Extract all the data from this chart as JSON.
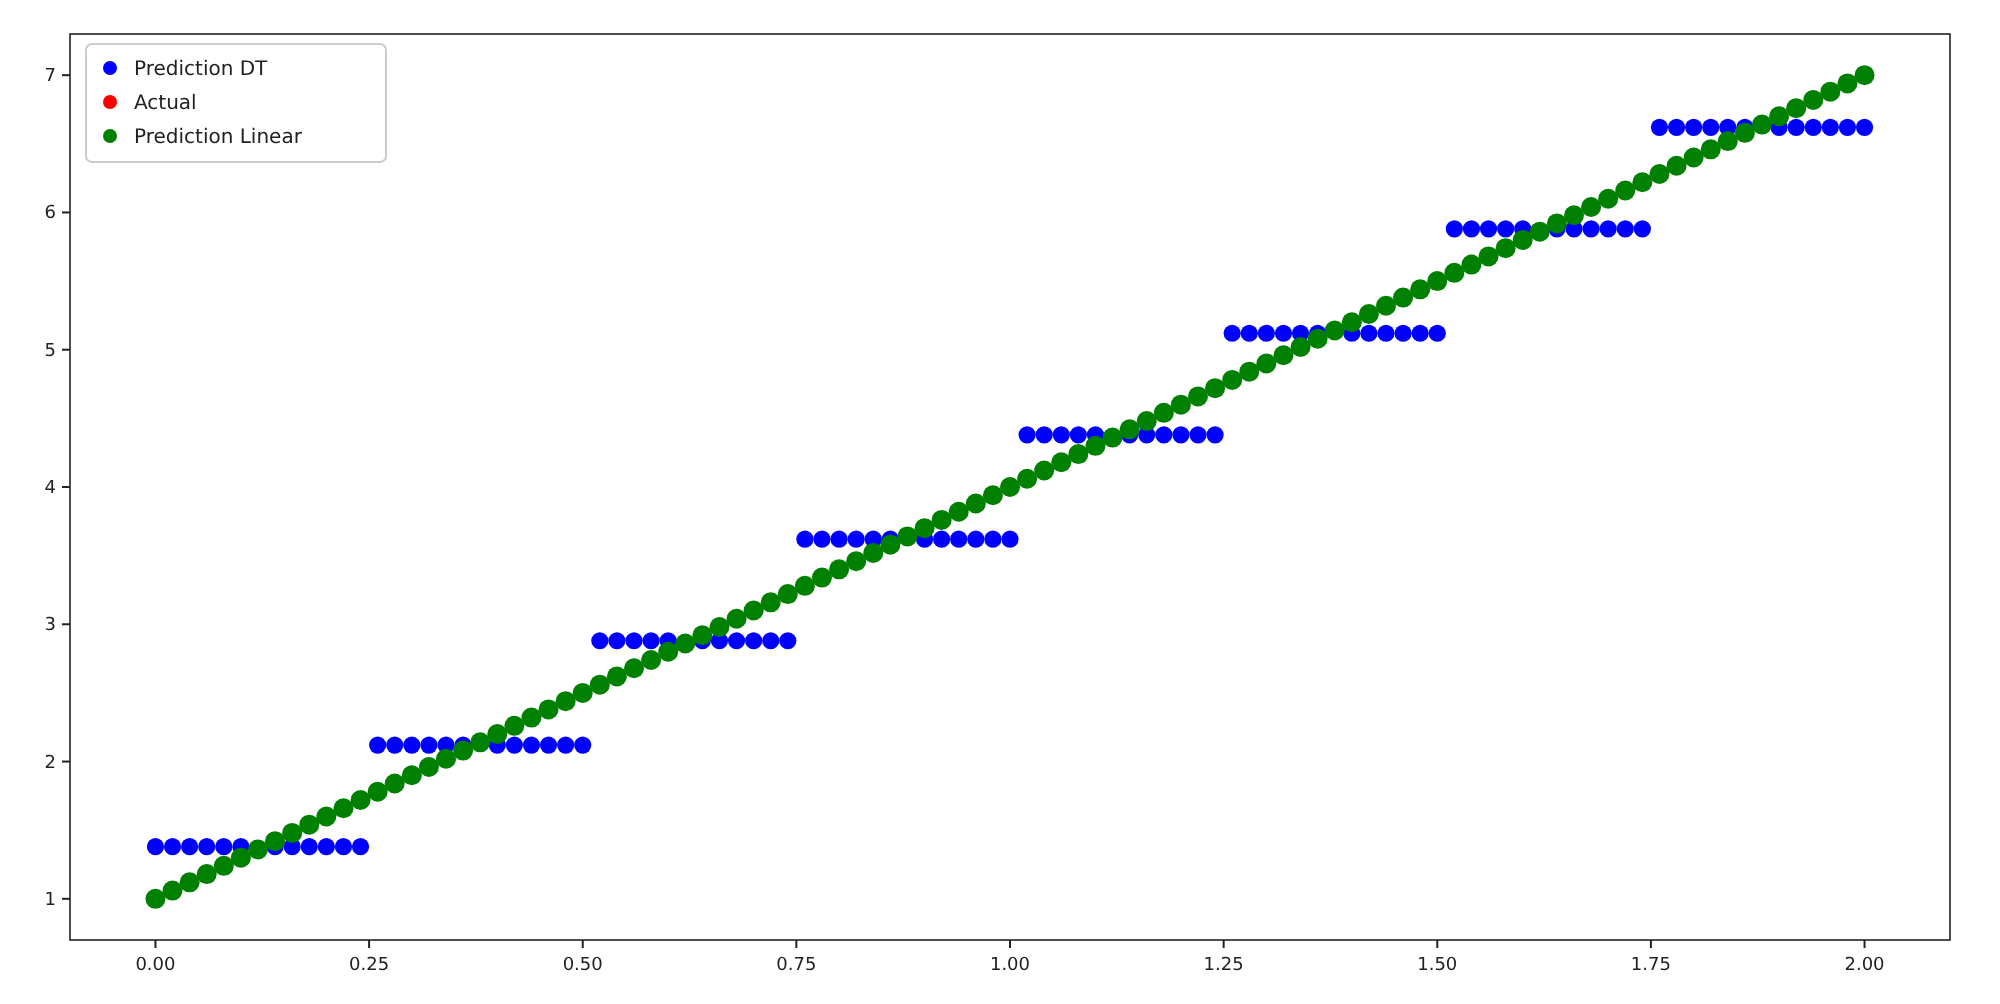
{
  "chart_data": {
    "type": "scatter",
    "xlim": [
      -0.1,
      2.1
    ],
    "ylim": [
      0.7,
      7.3
    ],
    "xticks": [
      {
        "value": 0,
        "label": "0.00"
      },
      {
        "value": 0.25,
        "label": "0.25"
      },
      {
        "value": 0.5,
        "label": "0.50"
      },
      {
        "value": 0.75,
        "label": "0.75"
      },
      {
        "value": 1,
        "label": "1.00"
      },
      {
        "value": 1.25,
        "label": "1.25"
      },
      {
        "value": 1.5,
        "label": "1.50"
      },
      {
        "value": 1.75,
        "label": "1.75"
      },
      {
        "value": 2,
        "label": "2.00"
      }
    ],
    "yticks": [
      1,
      2,
      3,
      4,
      5,
      6,
      7
    ],
    "legend": "top left",
    "marker": "circle",
    "grid": false,
    "x": [
      0,
      0.02,
      0.04,
      0.06,
      0.08,
      0.1,
      0.12,
      0.14,
      0.16,
      0.18,
      0.2,
      0.22,
      0.24,
      0.26,
      0.28,
      0.3,
      0.32,
      0.34,
      0.36,
      0.38,
      0.4,
      0.42,
      0.44,
      0.46,
      0.48,
      0.5,
      0.52,
      0.54,
      0.56,
      0.58,
      0.6,
      0.62,
      0.64,
      0.66,
      0.68,
      0.7,
      0.72,
      0.74,
      0.76,
      0.78,
      0.8,
      0.82,
      0.84,
      0.86,
      0.88,
      0.9,
      0.92,
      0.94,
      0.96,
      0.98,
      1,
      1.02,
      1.04,
      1.06,
      1.08,
      1.1,
      1.12,
      1.14,
      1.16,
      1.18,
      1.2,
      1.22,
      1.24,
      1.26,
      1.28,
      1.3,
      1.32,
      1.34,
      1.36,
      1.38,
      1.4,
      1.42,
      1.44,
      1.46,
      1.48,
      1.5,
      1.52,
      1.54,
      1.56,
      1.58,
      1.6,
      1.62,
      1.64,
      1.66,
      1.68,
      1.7,
      1.72,
      1.74,
      1.76,
      1.78,
      1.8,
      1.82,
      1.84,
      1.86,
      1.88,
      1.9,
      1.92,
      1.94,
      1.96,
      1.98,
      2
    ],
    "series": [
      {
        "name": "Prediction DT",
        "color": "#0000ff",
        "values": [
          1.38,
          1.38,
          1.38,
          1.38,
          1.38,
          1.38,
          null,
          1.38,
          1.38,
          1.38,
          1.38,
          1.38,
          1.38,
          2.12,
          2.12,
          2.12,
          2.12,
          2.12,
          2.12,
          null,
          2.12,
          2.12,
          2.12,
          2.12,
          2.12,
          2.12,
          2.88,
          2.88,
          2.88,
          2.88,
          2.88,
          null,
          2.88,
          2.88,
          2.88,
          2.88,
          2.88,
          2.88,
          3.62,
          3.62,
          3.62,
          3.62,
          3.62,
          3.62,
          null,
          3.62,
          3.62,
          3.62,
          3.62,
          3.62,
          3.62,
          4.38,
          4.38,
          4.38,
          4.38,
          4.38,
          null,
          4.38,
          4.38,
          4.38,
          4.38,
          4.38,
          4.38,
          5.12,
          5.12,
          5.12,
          5.12,
          5.12,
          5.12,
          null,
          5.12,
          5.12,
          5.12,
          5.12,
          5.12,
          5.12,
          5.88,
          5.88,
          5.88,
          5.88,
          5.88,
          null,
          5.88,
          5.88,
          5.88,
          5.88,
          5.88,
          5.88,
          6.62,
          6.62,
          6.62,
          6.62,
          6.62,
          6.62,
          null,
          6.62,
          6.62,
          6.62,
          6.62,
          6.62,
          6.62
        ]
      },
      {
        "name": "Actual",
        "color": "#ff0000",
        "values": [
          null,
          null,
          null,
          null,
          null,
          null,
          null,
          null,
          null,
          null,
          null,
          null,
          null,
          null,
          null,
          null,
          null,
          null,
          null,
          null,
          null,
          null,
          null,
          null,
          null,
          null,
          null,
          null,
          null,
          null,
          null,
          null,
          null,
          null,
          null,
          null,
          null,
          null,
          null,
          null,
          null,
          null,
          null,
          null,
          null,
          null,
          null,
          null,
          null,
          null,
          null,
          null,
          null,
          null,
          null,
          null,
          null,
          null,
          null,
          null,
          null,
          null,
          null,
          null,
          null,
          null,
          null,
          null,
          null,
          null,
          null,
          null,
          null,
          null,
          null,
          null,
          null,
          null,
          null,
          null,
          null,
          null,
          null,
          null,
          null,
          null,
          null,
          null,
          null,
          null,
          null,
          null,
          null,
          null,
          null,
          null,
          null,
          null,
          null,
          null,
          null
        ]
      },
      {
        "name": "Prediction Linear",
        "color": "#008000",
        "values": [
          1,
          1.06,
          1.12,
          1.18,
          1.24,
          1.3,
          1.36,
          1.42,
          1.48,
          1.54,
          1.6,
          1.66,
          1.72,
          1.78,
          1.84,
          1.9,
          1.96,
          2.02,
          2.08,
          2.14,
          2.2,
          2.26,
          2.32,
          2.38,
          2.44,
          2.5,
          2.56,
          2.62,
          2.68,
          2.74,
          2.8,
          2.86,
          2.92,
          2.98,
          3.04,
          3.1,
          3.16,
          3.22,
          3.28,
          3.34,
          3.4,
          3.46,
          3.52,
          3.58,
          3.64,
          3.7,
          3.76,
          3.82,
          3.88,
          3.94,
          4,
          4.06,
          4.12,
          4.18,
          4.24,
          4.3,
          4.36,
          4.42,
          4.48,
          4.54,
          4.6,
          4.66,
          4.72,
          4.78,
          4.84,
          4.9,
          4.96,
          5.02,
          5.08,
          5.14,
          5.2,
          5.26,
          5.32,
          5.38,
          5.44,
          5.5,
          5.56,
          5.62,
          5.68,
          5.74,
          5.8,
          5.86,
          5.92,
          5.98,
          6.04,
          6.1,
          6.16,
          6.22,
          6.28,
          6.34,
          6.4,
          6.46,
          6.52,
          6.58,
          6.64,
          6.7,
          6.76,
          6.82,
          6.88,
          6.94,
          7
        ]
      }
    ]
  }
}
